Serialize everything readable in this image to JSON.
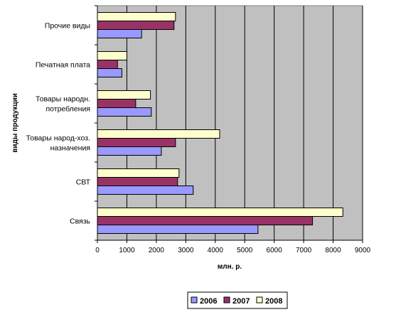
{
  "chart_data": {
    "type": "bar",
    "orientation": "horizontal",
    "categories": [
      "Прочие виды",
      "Печатная плата",
      "Товары народн. потребления",
      "Товары народ-хоз. назначения",
      "СВТ",
      "Связь"
    ],
    "series": [
      {
        "name": "2006",
        "color": "#9999ff",
        "values": [
          1500,
          830,
          1830,
          2170,
          3250,
          5450
        ]
      },
      {
        "name": "2007",
        "color": "#993366",
        "values": [
          2600,
          680,
          1300,
          2650,
          2720,
          7300
        ]
      },
      {
        "name": "2008",
        "color": "#ffffcc",
        "values": [
          2650,
          1000,
          1800,
          4150,
          2770,
          8330
        ]
      }
    ],
    "xlabel": "млн. р.",
    "ylabel": "виды продукции",
    "xlim": [
      0,
      9000
    ],
    "xticks": [
      "0",
      "1000",
      "2000",
      "3000",
      "4000",
      "5000",
      "6000",
      "7000",
      "8000",
      "9000"
    ],
    "grid": true,
    "legend_position": "bottom",
    "plot_background": "#c0c0c0"
  }
}
